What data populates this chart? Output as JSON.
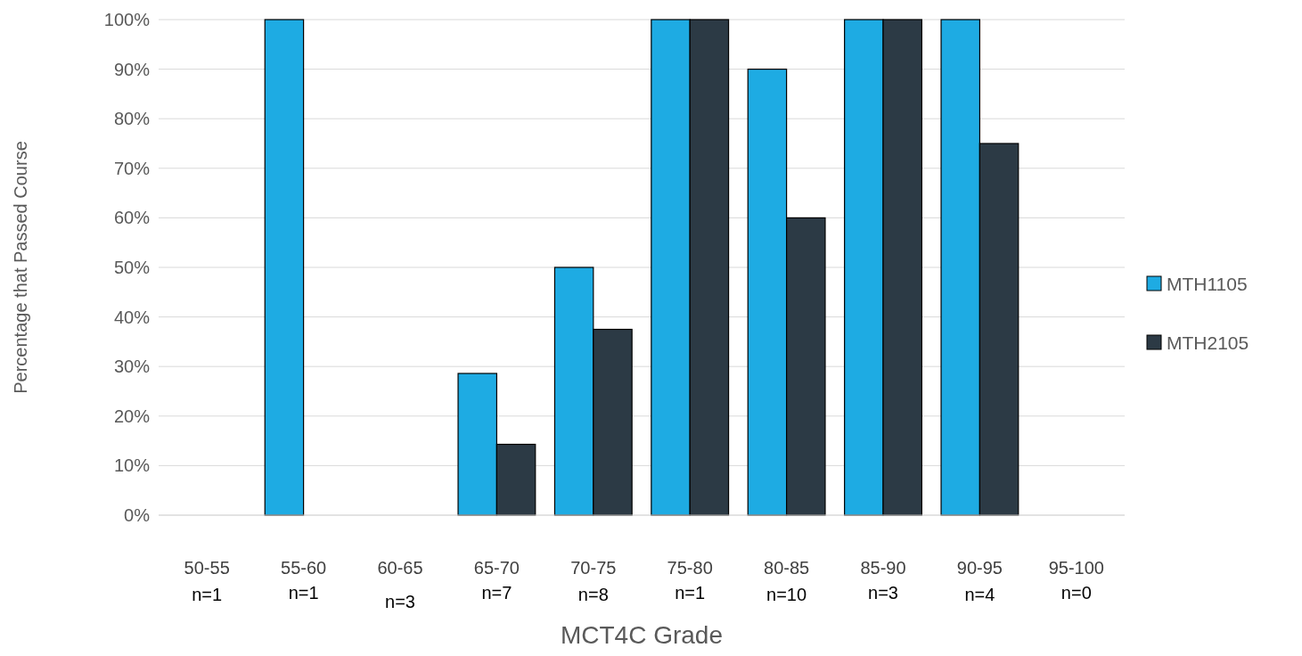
{
  "chart_data": {
    "type": "bar",
    "xlabel": "MCT4C Grade",
    "ylabel": "Percentage that Passed Course",
    "categories": [
      "50-55",
      "55-60",
      "60-65",
      "65-70",
      "70-75",
      "75-80",
      "80-85",
      "85-90",
      "90-95",
      "95-100"
    ],
    "series": [
      {
        "name": "MTH1105",
        "color": "#1eabe3",
        "values": [
          0,
          100,
          0,
          28.6,
          50,
          100,
          90,
          100,
          100,
          0
        ]
      },
      {
        "name": "MTH2105",
        "color": "#2c3a45",
        "values": [
          0,
          0,
          0,
          14.3,
          37.5,
          100,
          60,
          100,
          75,
          0
        ]
      }
    ],
    "ylim": [
      0,
      100
    ],
    "yticks": [
      {
        "value": 0,
        "label": "0%"
      },
      {
        "value": 10,
        "label": "10%"
      },
      {
        "value": 20,
        "label": "20%"
      },
      {
        "value": 30,
        "label": "30%"
      },
      {
        "value": 40,
        "label": "40%"
      },
      {
        "value": 50,
        "label": "50%"
      },
      {
        "value": 60,
        "label": "60%"
      },
      {
        "value": 70,
        "label": "70%"
      },
      {
        "value": 80,
        "label": "80%"
      },
      {
        "value": 90,
        "label": "90%"
      },
      {
        "value": 100,
        "label": "100%"
      }
    ],
    "grid": "y",
    "legend": "right",
    "annotations": [
      "n=1",
      "n=1",
      "n=3",
      "n=7",
      "n=8",
      "n=1",
      "n=10",
      "n=3",
      "n=4",
      "n=0"
    ]
  }
}
